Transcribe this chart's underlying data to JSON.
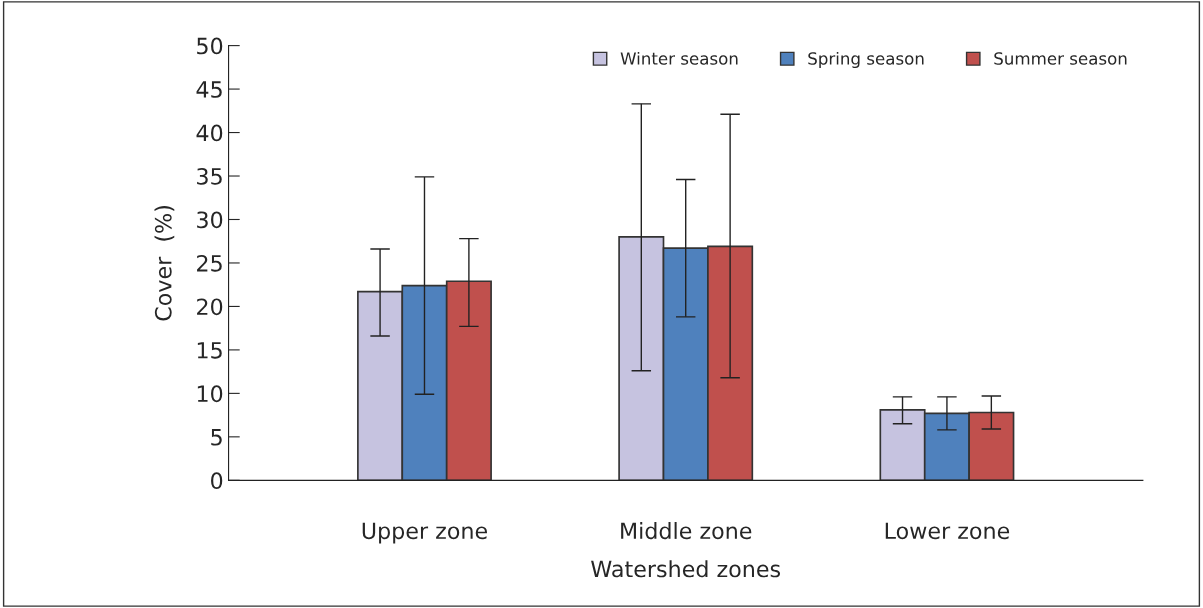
{
  "chart_data": {
    "type": "bar",
    "xlabel": "Watershed zones",
    "ylabel": "Cover  (%)",
    "categories": [
      "Upper zone",
      "Middle zone",
      "Lower zone"
    ],
    "series": [
      {
        "name": "Winter season",
        "color": "#c6c3e0",
        "values": [
          21.7,
          28.0,
          8.1
        ],
        "errors": [
          [
            16.6,
            26.6
          ],
          [
            12.6,
            43.3
          ],
          [
            6.5,
            9.6
          ]
        ]
      },
      {
        "name": "Spring season",
        "color": "#4f81bd",
        "values": [
          22.4,
          26.7,
          7.7
        ],
        "errors": [
          [
            9.9,
            34.9
          ],
          [
            18.8,
            34.6
          ],
          [
            5.8,
            9.6
          ]
        ]
      },
      {
        "name": "Summer season",
        "color": "#c0504d",
        "values": [
          22.9,
          26.9,
          7.8
        ],
        "errors": [
          [
            17.7,
            27.8
          ],
          [
            11.8,
            42.1
          ],
          [
            5.9,
            9.7
          ]
        ]
      }
    ],
    "ylim": [
      0,
      50
    ],
    "yticks": [
      0,
      5,
      10,
      15,
      20,
      25,
      30,
      35,
      40,
      45,
      50
    ],
    "grid": false,
    "legend": "top right"
  }
}
